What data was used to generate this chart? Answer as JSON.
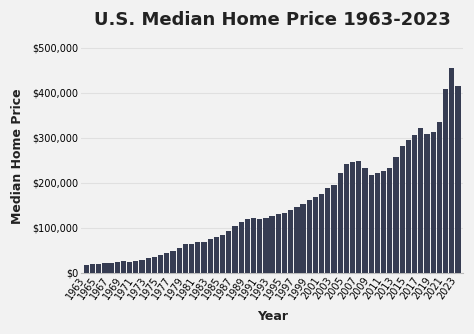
{
  "title": "U.S. Median Home Price 1963-2023",
  "xlabel": "Year",
  "ylabel": "Median Home Price",
  "bar_color": "#363c52",
  "background_color": "#f2f2f2",
  "plot_bg_color": "#f2f2f2",
  "years": [
    1963,
    1964,
    1965,
    1966,
    1967,
    1968,
    1969,
    1970,
    1971,
    1972,
    1973,
    1974,
    1975,
    1976,
    1977,
    1978,
    1979,
    1980,
    1981,
    1982,
    1983,
    1984,
    1985,
    1986,
    1987,
    1988,
    1989,
    1990,
    1991,
    1992,
    1993,
    1994,
    1995,
    1996,
    1997,
    1998,
    1999,
    2000,
    2001,
    2002,
    2003,
    2004,
    2005,
    2006,
    2007,
    2008,
    2009,
    2010,
    2011,
    2012,
    2013,
    2014,
    2015,
    2016,
    2017,
    2018,
    2019,
    2020,
    2021,
    2022,
    2023
  ],
  "prices": [
    18000,
    19700,
    20000,
    21400,
    22700,
    24400,
    25600,
    23400,
    25200,
    27600,
    32500,
    35900,
    39300,
    44200,
    48800,
    55700,
    64600,
    64600,
    68900,
    69300,
    75300,
    79900,
    84300,
    92000,
    104500,
    112500,
    120000,
    122900,
    120000,
    121500,
    126500,
    130000,
    133900,
    140000,
    145800,
    152500,
    161000,
    169000,
    175200,
    187600,
    195000,
    221000,
    240900,
    246500,
    247900,
    232100,
    216700,
    221800,
    226700,
    232500,
    257500,
    281400,
    296400,
    306700,
    322500,
    308600,
    313200,
    334500,
    408100,
    454700,
    416100
  ],
  "ylim": [
    0,
    520000
  ],
  "yticks": [
    0,
    100000,
    200000,
    300000,
    400000,
    500000
  ],
  "ytick_labels": [
    "$0",
    "$100,000",
    "$200,000",
    "$300,000",
    "$400,000",
    "$500,000"
  ],
  "title_fontsize": 13,
  "axis_label_fontsize": 9,
  "tick_fontsize": 7,
  "grid_color": "#e0e0e0"
}
